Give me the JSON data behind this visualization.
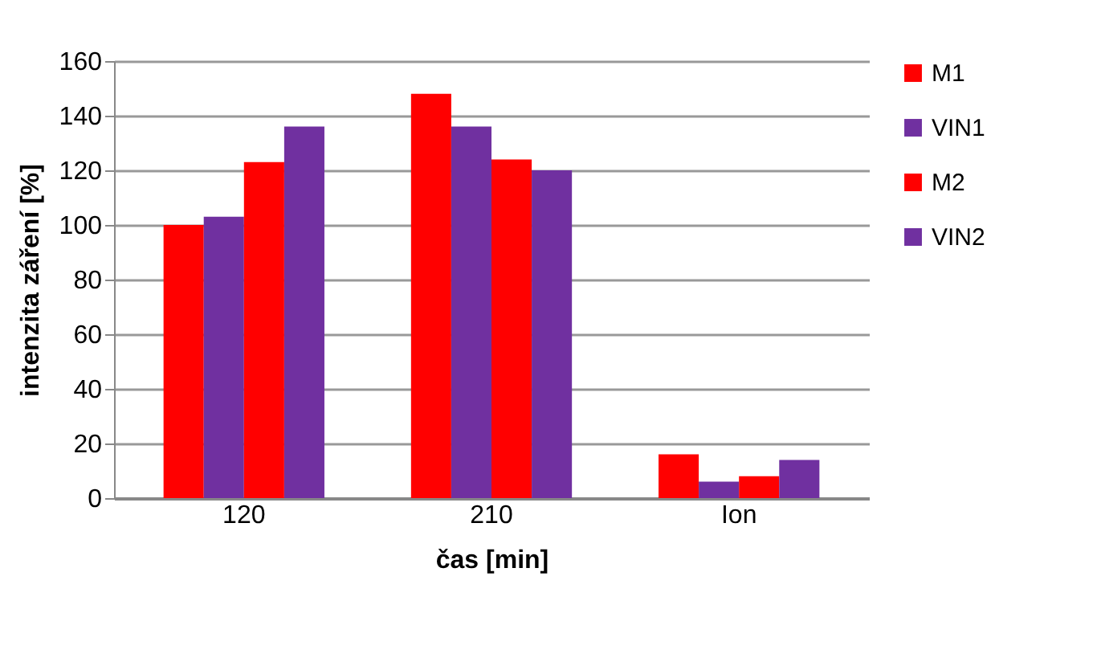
{
  "chart_data": {
    "type": "bar",
    "xlabel": "čas [min]",
    "ylabel": "intenzita záření [%]",
    "categories": [
      "120",
      "210",
      "Ion"
    ],
    "series": [
      {
        "name": "M1",
        "color": "#ff0000",
        "values": [
          100,
          148,
          16
        ]
      },
      {
        "name": "VIN1",
        "color": "#7030a0",
        "values": [
          103,
          136,
          6
        ]
      },
      {
        "name": "M2",
        "color": "#ff0000",
        "values": [
          123,
          124,
          8
        ]
      },
      {
        "name": "VIN2",
        "color": "#7030a0",
        "values": [
          136,
          120,
          14
        ]
      }
    ],
    "ylim": [
      0,
      160
    ],
    "yticks": [
      0,
      20,
      40,
      60,
      80,
      100,
      120,
      140,
      160
    ],
    "grid": "y",
    "legend": "right"
  }
}
